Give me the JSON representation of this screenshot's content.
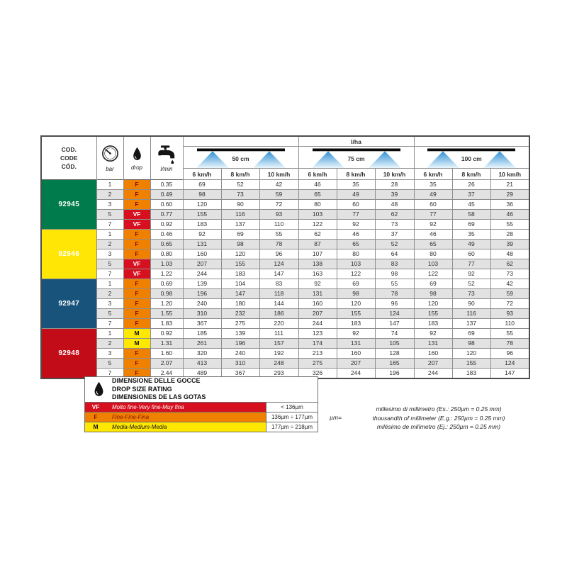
{
  "table": {
    "header": {
      "cod_lines": [
        "COD.",
        "CODE",
        "CÓD."
      ],
      "bar_label": "bar",
      "drop_label": "drop",
      "lmin_label": "l/min",
      "lha_label": "l/ha",
      "spacings": [
        "50 cm",
        "75 cm",
        "100 cm"
      ],
      "speeds": [
        "6 km/h",
        "8 km/h",
        "10 km/h"
      ]
    },
    "drop_colors": {
      "F": {
        "bg": "#F08000",
        "fg": "#871300"
      },
      "VF": {
        "bg": "#D6101E",
        "fg": "#FFFFFF"
      },
      "M": {
        "bg": "#FFE800",
        "fg": "#111111"
      }
    },
    "groups": [
      {
        "code": "92945",
        "color": "#007B4B",
        "rows": [
          {
            "bar": "1",
            "drop": "F",
            "lmin": "0.35",
            "lha": [
              69,
              52,
              42,
              46,
              35,
              28,
              35,
              26,
              21
            ]
          },
          {
            "bar": "2",
            "drop": "F",
            "lmin": "0.49",
            "lha": [
              98,
              73,
              59,
              65,
              49,
              39,
              49,
              37,
              29
            ]
          },
          {
            "bar": "3",
            "drop": "F",
            "lmin": "0.60",
            "lha": [
              120,
              90,
              72,
              80,
              60,
              48,
              60,
              45,
              36
            ]
          },
          {
            "bar": "5",
            "drop": "VF",
            "lmin": "0.77",
            "lha": [
              155,
              116,
              93,
              103,
              77,
              62,
              77,
              58,
              46
            ]
          },
          {
            "bar": "7",
            "drop": "VF",
            "lmin": "0.92",
            "lha": [
              183,
              137,
              110,
              122,
              92,
              73,
              92,
              69,
              55
            ]
          }
        ]
      },
      {
        "code": "92946",
        "color": "#FFE604",
        "rows": [
          {
            "bar": "1",
            "drop": "F",
            "lmin": "0.46",
            "lha": [
              92,
              69,
              55,
              62,
              46,
              37,
              46,
              35,
              28
            ]
          },
          {
            "bar": "2",
            "drop": "F",
            "lmin": "0.65",
            "lha": [
              131,
              98,
              78,
              87,
              65,
              52,
              65,
              49,
              39
            ]
          },
          {
            "bar": "3",
            "drop": "F",
            "lmin": "0.80",
            "lha": [
              160,
              120,
              96,
              107,
              80,
              64,
              80,
              60,
              48
            ]
          },
          {
            "bar": "5",
            "drop": "VF",
            "lmin": "1.03",
            "lha": [
              207,
              155,
              124,
              138,
              103,
              83,
              103,
              77,
              62
            ]
          },
          {
            "bar": "7",
            "drop": "VF",
            "lmin": "1.22",
            "lha": [
              244,
              183,
              147,
              163,
              122,
              98,
              122,
              92,
              73
            ]
          }
        ]
      },
      {
        "code": "92947",
        "color": "#17537B",
        "rows": [
          {
            "bar": "1",
            "drop": "F",
            "lmin": "0.69",
            "lha": [
              139,
              104,
              83,
              92,
              69,
              55,
              69,
              52,
              42
            ]
          },
          {
            "bar": "2",
            "drop": "F",
            "lmin": "0.98",
            "lha": [
              196,
              147,
              118,
              131,
              98,
              78,
              98,
              73,
              59
            ]
          },
          {
            "bar": "3",
            "drop": "F",
            "lmin": "1.20",
            "lha": [
              240,
              180,
              144,
              160,
              120,
              96,
              120,
              90,
              72
            ]
          },
          {
            "bar": "5",
            "drop": "F",
            "lmin": "1.55",
            "lha": [
              310,
              232,
              186,
              207,
              155,
              124,
              155,
              116,
              93
            ]
          },
          {
            "bar": "7",
            "drop": "F",
            "lmin": "1.83",
            "lha": [
              367,
              275,
              220,
              244,
              183,
              147,
              183,
              137,
              110
            ]
          }
        ]
      },
      {
        "code": "92948",
        "color": "#C20D19",
        "rows": [
          {
            "bar": "1",
            "drop": "M",
            "lmin": "0.92",
            "lha": [
              185,
              139,
              111,
              123,
              92,
              74,
              92,
              69,
              55
            ]
          },
          {
            "bar": "2",
            "drop": "M",
            "lmin": "1.31",
            "lha": [
              261,
              196,
              157,
              174,
              131,
              105,
              131,
              98,
              78
            ]
          },
          {
            "bar": "3",
            "drop": "F",
            "lmin": "1.60",
            "lha": [
              320,
              240,
              192,
              213,
              160,
              128,
              160,
              120,
              96
            ]
          },
          {
            "bar": "5",
            "drop": "F",
            "lmin": "2.07",
            "lha": [
              413,
              310,
              248,
              275,
              207,
              165,
              207,
              155,
              124
            ]
          },
          {
            "bar": "7",
            "drop": "F",
            "lmin": "2.44",
            "lha": [
              489,
              367,
              293,
              326,
              244,
              196,
              244,
              183,
              147
            ]
          }
        ]
      }
    ]
  },
  "legend": {
    "title_lines": [
      "DIMENSIONE DELLE GOCCE",
      "DROP SIZE RATING",
      "DIMENSIONES DE LAS GOTAS"
    ],
    "rows": [
      {
        "letter": "VF",
        "label": "Molto fine-Very fine-Muy fina",
        "value": "< 136µm",
        "bg": "#D6101E",
        "fg": "#FFFFFF"
      },
      {
        "letter": "F",
        "label": "Fine-Fine-Fina",
        "value": "136µm ÷ 177µm",
        "bg": "#F08000",
        "fg": "#871300"
      },
      {
        "letter": "M",
        "label": "Media-Medium-Media",
        "value": "177µm ÷ 218µm",
        "bg": "#FFE800",
        "fg": "#111111"
      }
    ]
  },
  "notes": {
    "prefix": "µm=",
    "lines": [
      "millesimo di millimetro (Es.: 250µm = 0.25 mm)",
      "thousandth of millimeter (E.g.: 250µm = 0.25 mm)",
      "milésimo de milímetro (Ej.: 250µm = 0.25 mm)"
    ]
  }
}
